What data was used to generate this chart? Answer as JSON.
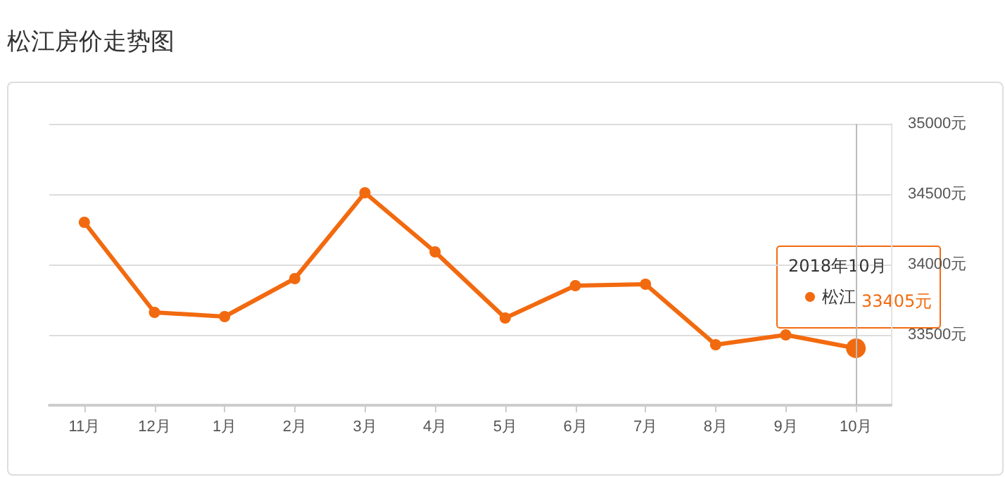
{
  "chart_data": {
    "type": "line",
    "title": "松江房价走势图",
    "categories": [
      "11月",
      "12月",
      "1月",
      "2月",
      "3月",
      "4月",
      "5月",
      "6月",
      "7月",
      "8月",
      "9月",
      "10月"
    ],
    "series": [
      {
        "name": "松江",
        "color": "#f26a0f",
        "values": [
          34300,
          33660,
          33630,
          33900,
          34510,
          34090,
          33620,
          33850,
          33860,
          33430,
          33500,
          33405
        ],
        "value_labels": [
          null,
          null,
          null,
          null,
          null,
          null,
          null,
          null,
          null,
          null,
          null,
          "33405元"
        ]
      }
    ],
    "annotations": [
      "2018年10月"
    ],
    "ref_lines": [
      {
        "axis": "x",
        "value": "10月",
        "label": null,
        "color": "#bbbbbb"
      }
    ],
    "ylim": [
      33000,
      35000
    ],
    "yticks": [
      {
        "value": 33000,
        "label": null
      },
      {
        "value": 33500,
        "label": "33500元"
      },
      {
        "value": 34000,
        "label": "34000元"
      },
      {
        "value": 34500,
        "label": "34500元"
      },
      {
        "value": 35000,
        "label": "35000元"
      }
    ],
    "grid": "y",
    "marker": "circle",
    "line_style": "solid",
    "legend": "right"
  }
}
